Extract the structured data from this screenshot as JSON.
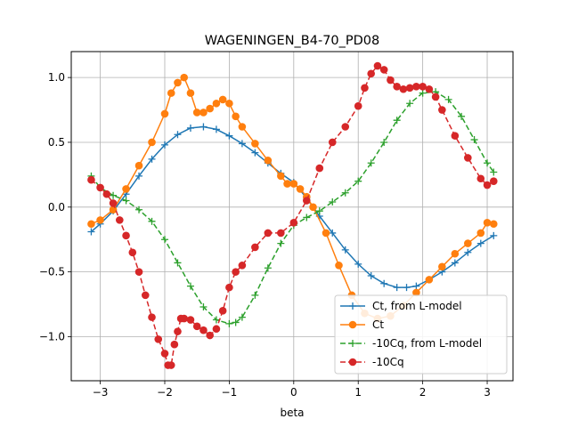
{
  "chart_data": {
    "type": "line",
    "title": "WAGENINGEN_B4-70_PD08",
    "xlabel": "beta",
    "ylabel": "",
    "xlim": [
      -3.45,
      3.4
    ],
    "ylim": [
      -1.34,
      1.2
    ],
    "xticks": [
      -3,
      -2,
      -1,
      0,
      1,
      2,
      3
    ],
    "yticks": [
      -1.0,
      -0.5,
      0.0,
      0.5,
      1.0
    ],
    "xtick_labels": [
      "−3",
      "−2",
      "−1",
      "0",
      "1",
      "2",
      "3"
    ],
    "ytick_labels": [
      "−1.0",
      "−0.5",
      "0.0",
      "0.5",
      "1.0"
    ],
    "grid": true,
    "legend_position": "lower-right",
    "series": [
      {
        "name": "Ct, from L-model",
        "color": "#1f77b4",
        "marker": "plus",
        "linestyle": "solid",
        "x": [
          -3.14,
          -3.0,
          -2.8,
          -2.6,
          -2.4,
          -2.2,
          -2.0,
          -1.8,
          -1.6,
          -1.4,
          -1.2,
          -1.0,
          -0.8,
          -0.6,
          -0.4,
          -0.2,
          0.0,
          0.2,
          0.4,
          0.6,
          0.8,
          1.0,
          1.2,
          1.4,
          1.6,
          1.75,
          1.9,
          2.1,
          2.3,
          2.5,
          2.7,
          2.9,
          3.1
        ],
        "y": [
          -0.19,
          -0.13,
          -0.03,
          0.1,
          0.24,
          0.37,
          0.48,
          0.56,
          0.61,
          0.62,
          0.6,
          0.55,
          0.49,
          0.42,
          0.34,
          0.26,
          0.19,
          0.07,
          -0.07,
          -0.2,
          -0.33,
          -0.44,
          -0.53,
          -0.59,
          -0.62,
          -0.62,
          -0.61,
          -0.56,
          -0.5,
          -0.43,
          -0.35,
          -0.28,
          -0.22
        ]
      },
      {
        "name": "Ct",
        "color": "#ff7f0e",
        "marker": "circle",
        "linestyle": "solid",
        "x": [
          -3.14,
          -3.0,
          -2.8,
          -2.6,
          -2.4,
          -2.2,
          -2.0,
          -1.9,
          -1.8,
          -1.7,
          -1.6,
          -1.5,
          -1.4,
          -1.3,
          -1.2,
          -1.1,
          -1.0,
          -0.9,
          -0.8,
          -0.6,
          -0.4,
          -0.2,
          -0.1,
          0.0,
          0.1,
          0.2,
          0.3,
          0.5,
          0.7,
          0.9,
          1.1,
          1.3,
          1.5,
          1.7,
          1.9,
          2.1,
          2.3,
          2.5,
          2.7,
          2.9,
          3.0,
          3.1
        ],
        "y": [
          -0.13,
          -0.1,
          -0.02,
          0.14,
          0.32,
          0.5,
          0.72,
          0.88,
          0.96,
          1.0,
          0.88,
          0.73,
          0.73,
          0.76,
          0.8,
          0.83,
          0.8,
          0.7,
          0.62,
          0.49,
          0.36,
          0.24,
          0.18,
          0.18,
          0.14,
          0.08,
          0.0,
          -0.2,
          -0.45,
          -0.68,
          -0.82,
          -0.86,
          -0.84,
          -0.76,
          -0.66,
          -0.56,
          -0.46,
          -0.36,
          -0.28,
          -0.2,
          -0.12,
          -0.13
        ]
      },
      {
        "name": "-10Cq, from L-model",
        "color": "#2ca02c",
        "marker": "plus",
        "linestyle": "dashed",
        "x": [
          -3.14,
          -3.0,
          -2.8,
          -2.6,
          -2.4,
          -2.2,
          -2.0,
          -1.8,
          -1.6,
          -1.4,
          -1.2,
          -1.0,
          -0.9,
          -0.8,
          -0.6,
          -0.4,
          -0.2,
          0.0,
          0.2,
          0.4,
          0.6,
          0.8,
          1.0,
          1.2,
          1.4,
          1.6,
          1.8,
          2.0,
          2.2,
          2.4,
          2.6,
          2.8,
          3.0,
          3.1
        ],
        "y": [
          0.24,
          0.15,
          0.09,
          0.05,
          -0.02,
          -0.11,
          -0.25,
          -0.43,
          -0.61,
          -0.77,
          -0.87,
          -0.9,
          -0.89,
          -0.85,
          -0.68,
          -0.47,
          -0.28,
          -0.14,
          -0.08,
          -0.03,
          0.04,
          0.11,
          0.2,
          0.34,
          0.5,
          0.67,
          0.8,
          0.88,
          0.89,
          0.83,
          0.7,
          0.52,
          0.34,
          0.27
        ]
      },
      {
        "name": "-10Cq",
        "color": "#d62728",
        "marker": "circle",
        "linestyle": "dashed",
        "x": [
          -3.14,
          -3.0,
          -2.9,
          -2.8,
          -2.7,
          -2.6,
          -2.5,
          -2.4,
          -2.3,
          -2.2,
          -2.1,
          -2.0,
          -1.95,
          -1.9,
          -1.85,
          -1.8,
          -1.75,
          -1.7,
          -1.6,
          -1.5,
          -1.4,
          -1.3,
          -1.2,
          -1.1,
          -1.0,
          -0.9,
          -0.8,
          -0.6,
          -0.4,
          -0.2,
          0.0,
          0.2,
          0.4,
          0.6,
          0.8,
          1.0,
          1.1,
          1.2,
          1.3,
          1.4,
          1.5,
          1.6,
          1.7,
          1.8,
          1.9,
          2.0,
          2.1,
          2.2,
          2.3,
          2.5,
          2.7,
          2.9,
          3.0,
          3.1
        ],
        "y": [
          0.21,
          0.15,
          0.1,
          0.03,
          -0.1,
          -0.22,
          -0.35,
          -0.5,
          -0.68,
          -0.85,
          -1.02,
          -1.13,
          -1.22,
          -1.22,
          -1.06,
          -0.96,
          -0.86,
          -0.86,
          -0.87,
          -0.92,
          -0.95,
          -0.99,
          -0.94,
          -0.8,
          -0.62,
          -0.5,
          -0.45,
          -0.31,
          -0.2,
          -0.2,
          -0.12,
          0.05,
          0.3,
          0.5,
          0.62,
          0.78,
          0.92,
          1.03,
          1.09,
          1.06,
          0.98,
          0.93,
          0.91,
          0.92,
          0.93,
          0.93,
          0.91,
          0.85,
          0.75,
          0.55,
          0.38,
          0.22,
          0.17,
          0.2
        ]
      }
    ]
  }
}
